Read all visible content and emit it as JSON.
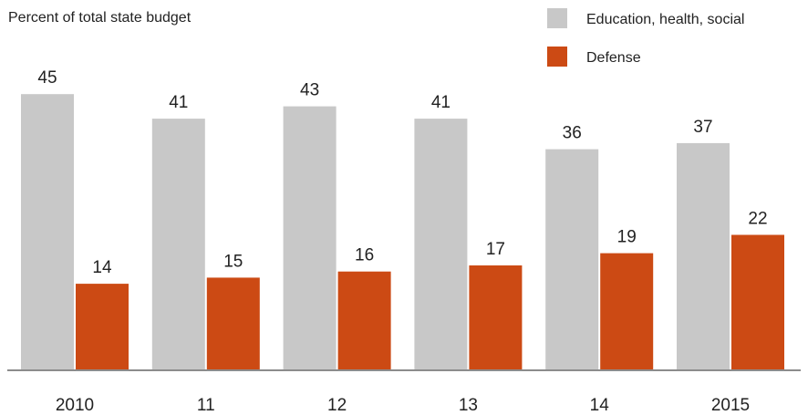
{
  "chart_data": {
    "type": "bar",
    "subtitle": "Percent of total state budget",
    "categories": [
      "2010",
      "11",
      "12",
      "13",
      "14",
      "2015"
    ],
    "series": [
      {
        "name": "Education, health, social",
        "color": "#c8c8c8",
        "values": [
          45,
          41,
          43,
          41,
          36,
          37
        ]
      },
      {
        "name": "Defense",
        "color": "#cc4a14",
        "values": [
          14,
          15,
          16,
          17,
          19,
          22
        ]
      }
    ],
    "ylim": [
      0,
      51
    ],
    "grid": false,
    "legend_position": "top-right"
  }
}
